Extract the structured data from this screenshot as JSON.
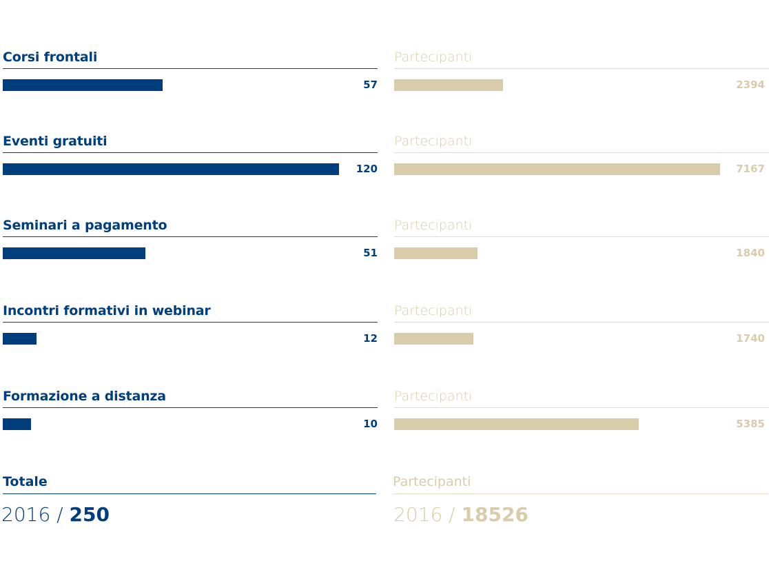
{
  "chart_data": {
    "type": "bar",
    "categories": [
      "Corsi frontali",
      "Eventi gratuiti",
      "Seminari a pagamento",
      "Incontri formativi in webinar",
      "Formazione a distanza"
    ],
    "series": [
      {
        "values": [
          57,
          120,
          51,
          12,
          10
        ]
      },
      {
        "name": "Partecipanti",
        "values": [
          2394,
          7167,
          1840,
          1740,
          5385
        ]
      }
    ],
    "colors": {
      "events": "#003e7e",
      "participants": "#d9ccab"
    }
  },
  "rows": [
    {
      "title": "Corsi frontali",
      "events_label": "57",
      "participants_title": "Partecipanti",
      "participants_label": "2394"
    },
    {
      "title": "Eventi gratuiti",
      "events_label": "120",
      "participants_title": "Partecipanti",
      "participants_label": "7167"
    },
    {
      "title": "Seminari a pagamento",
      "events_label": "51",
      "participants_title": "Partecipanti",
      "participants_label": "1840"
    },
    {
      "title": "Incontri formativi in webinar",
      "events_label": "12",
      "participants_title": "Partecipanti",
      "participants_label": "1740"
    },
    {
      "title": "Formazione a distanza",
      "events_label": "10",
      "participants_title": "Partecipanti",
      "participants_label": "5385"
    }
  ],
  "totals": {
    "title": "Totale",
    "participants_title": "Partecipanti",
    "year": "2016 / ",
    "events_total": "250",
    "participants_total": "18526"
  }
}
